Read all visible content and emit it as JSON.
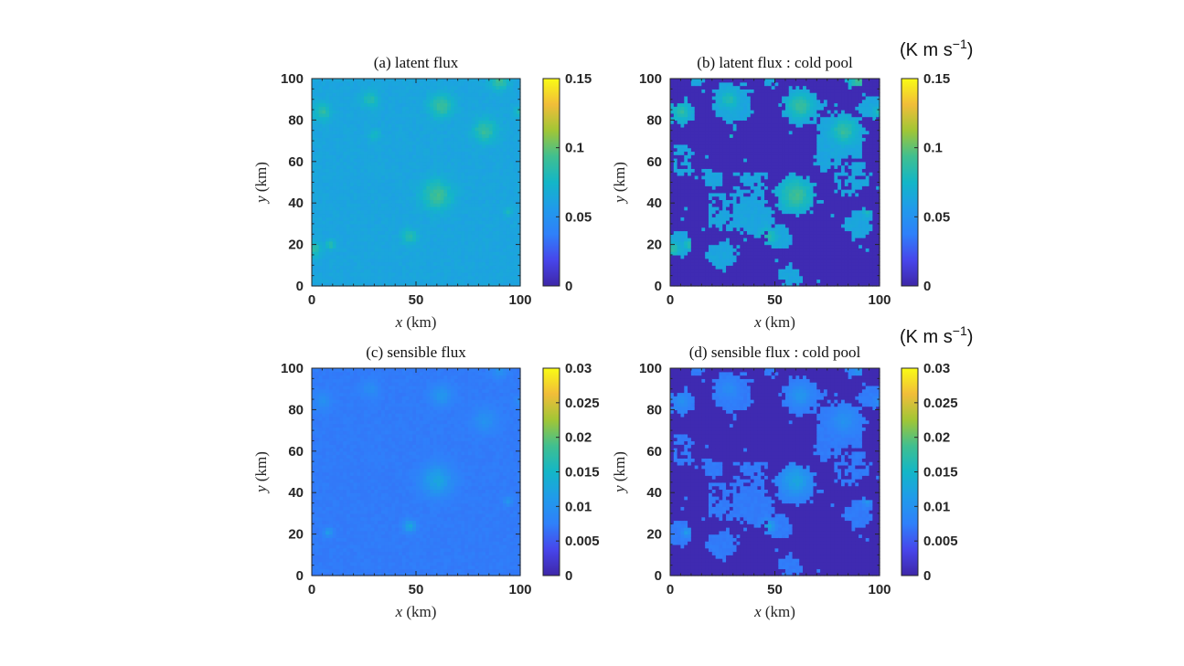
{
  "colors": {
    "parula_low": "#3e26a8",
    "parula_mid": "#2ab5b5",
    "parula_high": "#f9fb15"
  },
  "units": {
    "top": {
      "base": "(K m s",
      "exp": "−1",
      "close": ")"
    },
    "bottom": {
      "base": "(K m s",
      "exp": "−1",
      "close": ")"
    }
  },
  "chart_data": [
    {
      "type": "heatmap",
      "title": "(a) latent flux",
      "xlabel_var": "x",
      "xlabel_unit": " (km)",
      "ylabel_var": "y",
      "ylabel_unit": " (km)",
      "xlim": [
        0,
        100
      ],
      "ylim": [
        0,
        100
      ],
      "xticks": [
        "0",
        "50",
        "100"
      ],
      "yticks": [
        "0",
        "20",
        "40",
        "60",
        "80",
        "100"
      ],
      "clim": [
        0,
        0.15
      ],
      "cticks": [
        {
          "v": 0,
          "t": "0"
        },
        {
          "v": 0.05,
          "t": "0.05"
        },
        {
          "v": 0.1,
          "t": "0.1"
        },
        {
          "v": 0.15,
          "t": "0.15"
        }
      ],
      "background": 0.063,
      "blobs": [
        [
          60,
          44,
          5,
          0.092
        ],
        [
          62,
          87,
          4,
          0.09
        ],
        [
          83,
          75,
          4,
          0.088
        ],
        [
          90,
          99,
          3,
          0.09
        ],
        [
          5,
          84,
          3,
          0.085
        ],
        [
          28,
          90,
          3,
          0.082
        ],
        [
          47,
          24,
          2.5,
          0.085
        ],
        [
          9,
          20,
          1.5,
          0.088
        ],
        [
          1,
          18,
          2.5,
          0.085
        ],
        [
          94,
          36,
          1.5,
          0.078
        ],
        [
          100,
          84,
          2,
          0.08
        ],
        [
          30,
          73,
          2,
          0.076
        ]
      ],
      "cold_pool": false
    },
    {
      "type": "heatmap",
      "title": "(b) latent flux :  cold pool",
      "xlabel_var": "x",
      "xlabel_unit": " (km)",
      "ylabel_var": "y",
      "ylabel_unit": " (km)",
      "xlim": [
        0,
        100
      ],
      "ylim": [
        0,
        100
      ],
      "xticks": [
        "0",
        "50",
        "100"
      ],
      "yticks": [
        "0",
        "20",
        "40",
        "60",
        "80",
        "100"
      ],
      "clim": [
        0,
        0.15
      ],
      "cticks": [
        {
          "v": 0,
          "t": "0"
        },
        {
          "v": 0.05,
          "t": "0.05"
        },
        {
          "v": 0.1,
          "t": "0.1"
        },
        {
          "v": 0.15,
          "t": "0.15"
        }
      ],
      "background": 0.063,
      "blobs": [
        [
          60,
          44,
          5,
          0.092
        ],
        [
          62,
          87,
          4,
          0.09
        ],
        [
          83,
          75,
          4,
          0.088
        ],
        [
          90,
          99,
          3,
          0.09
        ],
        [
          5,
          84,
          3,
          0.085
        ],
        [
          28,
          90,
          3,
          0.082
        ],
        [
          47,
          24,
          2.5,
          0.085
        ],
        [
          9,
          20,
          1.5,
          0.088
        ],
        [
          1,
          18,
          2.5,
          0.085
        ],
        [
          94,
          36,
          1.5,
          0.078
        ],
        [
          100,
          84,
          2,
          0.08
        ],
        [
          30,
          73,
          2,
          0.076
        ]
      ],
      "cold_pool": true,
      "cold_pool_value": 0.003
    },
    {
      "type": "heatmap",
      "title": "(c) sensible flux",
      "xlabel_var": "x",
      "xlabel_unit": " (km)",
      "ylabel_var": "y",
      "ylabel_unit": " (km)",
      "xlim": [
        0,
        100
      ],
      "ylim": [
        0,
        100
      ],
      "xticks": [
        "0",
        "50",
        "100"
      ],
      "yticks": [
        "0",
        "20",
        "40",
        "60",
        "80",
        "100"
      ],
      "clim": [
        0,
        0.03
      ],
      "cticks": [
        {
          "v": 0,
          "t": "0"
        },
        {
          "v": 0.005,
          "t": "0.005"
        },
        {
          "v": 0.01,
          "t": "0.01"
        },
        {
          "v": 0.015,
          "t": "0.015"
        },
        {
          "v": 0.02,
          "t": "0.02"
        },
        {
          "v": 0.025,
          "t": "0.025"
        },
        {
          "v": 0.03,
          "t": "0.03"
        }
      ],
      "background": 0.0072,
      "blobs": [
        [
          60,
          46,
          5,
          0.0125
        ],
        [
          62,
          87,
          3.5,
          0.0105
        ],
        [
          83,
          75,
          4,
          0.0098
        ],
        [
          90,
          99,
          2.5,
          0.0098
        ],
        [
          5,
          84,
          3,
          0.0095
        ],
        [
          28,
          90,
          3,
          0.0092
        ],
        [
          47,
          24,
          2,
          0.013
        ],
        [
          8,
          21,
          1.5,
          0.0115
        ],
        [
          94,
          36,
          1.5,
          0.0105
        ],
        [
          100,
          84,
          2,
          0.009
        ]
      ],
      "cold_pool": false
    },
    {
      "type": "heatmap",
      "title": "(d) sensible flux :  cold pool",
      "xlabel_var": "x",
      "xlabel_unit": " (km)",
      "ylabel_var": "y",
      "ylabel_unit": " (km)",
      "xlim": [
        0,
        100
      ],
      "ylim": [
        0,
        100
      ],
      "xticks": [
        "0",
        "50",
        "100"
      ],
      "yticks": [
        "0",
        "20",
        "40",
        "60",
        "80",
        "100"
      ],
      "clim": [
        0,
        0.03
      ],
      "cticks": [
        {
          "v": 0,
          "t": "0"
        },
        {
          "v": 0.005,
          "t": "0.005"
        },
        {
          "v": 0.01,
          "t": "0.01"
        },
        {
          "v": 0.015,
          "t": "0.015"
        },
        {
          "v": 0.02,
          "t": "0.02"
        },
        {
          "v": 0.025,
          "t": "0.025"
        },
        {
          "v": 0.03,
          "t": "0.03"
        }
      ],
      "background": 0.0072,
      "blobs": [
        [
          60,
          46,
          5,
          0.0125
        ],
        [
          62,
          87,
          3.5,
          0.0105
        ],
        [
          83,
          75,
          4,
          0.0098
        ],
        [
          90,
          99,
          2.5,
          0.0098
        ],
        [
          5,
          84,
          3,
          0.0095
        ],
        [
          28,
          90,
          3,
          0.0092
        ],
        [
          47,
          24,
          2,
          0.013
        ],
        [
          8,
          21,
          1.5,
          0.0115
        ],
        [
          94,
          36,
          1.5,
          0.0105
        ],
        [
          100,
          84,
          2,
          0.009
        ]
      ],
      "cold_pool": true,
      "cold_pool_value": 0.0005
    }
  ]
}
